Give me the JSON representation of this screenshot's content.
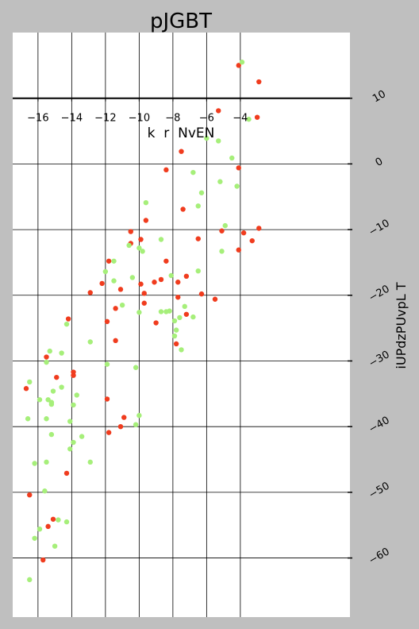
{
  "chart_data": {
    "type": "scatter",
    "title": "pJGBT",
    "xlabel": "k  r  NvEN",
    "ylabel": "iUPdzPUvpL T",
    "xlim": [
      -17.5,
      2.5
    ],
    "ylim": [
      -69,
      20
    ],
    "x_ticks": [
      -16,
      -14,
      -12,
      -10,
      -8,
      -6,
      -4
    ],
    "x_tick_labels": [
      "−16",
      "−14",
      "−12",
      "−10",
      "−8",
      "−6",
      "−4"
    ],
    "y_ticks": [
      10,
      0,
      -10,
      -20,
      -30,
      -40,
      -50,
      -60
    ],
    "y_tick_labels": [
      "10",
      "0",
      "−10",
      "−20",
      "−30",
      "−40",
      "−50",
      "−60"
    ],
    "x_axis_at_y": 10,
    "y_axis_position": "right",
    "grid": true,
    "colors": {
      "background": "#bfbfbf",
      "plot_bg": "#ffffff",
      "series_1": "#f03c1e",
      "series_2": "#a6ef7a"
    },
    "series": [
      {
        "color": "#f03c1e",
        "points": [
          [
            -4.1,
            15.0
          ],
          [
            -2.9,
            12.5
          ],
          [
            -5.3,
            8.1
          ],
          [
            -3.0,
            7.1
          ],
          [
            -7.5,
            1.9
          ],
          [
            -8.4,
            -0.9
          ],
          [
            -4.1,
            -0.6
          ],
          [
            -7.4,
            -6.9
          ],
          [
            -9.6,
            -8.6
          ],
          [
            -6.5,
            -11.4
          ],
          [
            -10.5,
            -10.3
          ],
          [
            -9.9,
            -11.5
          ],
          [
            -5.1,
            -10.2
          ],
          [
            -3.8,
            -10.5
          ],
          [
            -2.9,
            -9.8
          ],
          [
            -3.3,
            -11.7
          ],
          [
            -10.5,
            -12.1
          ],
          [
            -4.1,
            -13.1
          ],
          [
            -11.8,
            -14.8
          ],
          [
            -8.4,
            -14.8
          ],
          [
            -9.9,
            -18.3
          ],
          [
            -8.7,
            -17.6
          ],
          [
            -7.7,
            -18.0
          ],
          [
            -7.2,
            -17.1
          ],
          [
            -9.1,
            -18.0
          ],
          [
            -12.2,
            -18.2
          ],
          [
            -11.1,
            -19.1
          ],
          [
            -12.9,
            -19.6
          ],
          [
            -9.7,
            -19.7
          ],
          [
            -6.3,
            -19.8
          ],
          [
            -7.7,
            -20.3
          ],
          [
            -5.5,
            -20.6
          ],
          [
            -9.7,
            -21.2
          ],
          [
            -11.4,
            -22.0
          ],
          [
            -7.2,
            -22.9
          ],
          [
            -9.0,
            -24.2
          ],
          [
            -11.9,
            -24.0
          ],
          [
            -14.2,
            -23.6
          ],
          [
            -11.4,
            -26.9
          ],
          [
            -7.8,
            -27.4
          ],
          [
            -15.5,
            -29.4
          ],
          [
            -13.9,
            -31.7
          ],
          [
            -13.9,
            -32.2
          ],
          [
            -14.9,
            -32.5
          ],
          [
            -16.7,
            -34.2
          ],
          [
            -11.9,
            -35.8
          ],
          [
            -10.9,
            -38.6
          ],
          [
            -11.1,
            -40.0
          ],
          [
            -11.8,
            -40.9
          ],
          [
            -14.3,
            -47.1
          ],
          [
            -16.5,
            -50.4
          ],
          [
            -15.1,
            -54.1
          ],
          [
            -15.4,
            -55.2
          ],
          [
            -15.7,
            -60.3
          ]
        ]
      },
      {
        "color": "#a6ef7a",
        "points": [
          [
            -3.9,
            15.5
          ],
          [
            -3.5,
            6.8
          ],
          [
            -6.0,
            3.9
          ],
          [
            -5.3,
            3.5
          ],
          [
            -4.5,
            0.9
          ],
          [
            -6.8,
            -1.3
          ],
          [
            -5.2,
            -2.7
          ],
          [
            -4.2,
            -3.4
          ],
          [
            -6.3,
            -4.4
          ],
          [
            -9.6,
            -5.9
          ],
          [
            -6.5,
            -6.4
          ],
          [
            -4.9,
            -9.4
          ],
          [
            -8.7,
            -11.5
          ],
          [
            -10.6,
            -12.4
          ],
          [
            -10.0,
            -12.8
          ],
          [
            -9.8,
            -13.3
          ],
          [
            -5.1,
            -13.3
          ],
          [
            -11.5,
            -14.8
          ],
          [
            -12.0,
            -16.4
          ],
          [
            -6.5,
            -16.3
          ],
          [
            -11.5,
            -17.8
          ],
          [
            -10.4,
            -17.3
          ],
          [
            -8.1,
            -17.0
          ],
          [
            -7.3,
            -21.7
          ],
          [
            -11.0,
            -21.5
          ],
          [
            -10.0,
            -22.6
          ],
          [
            -8.7,
            -22.5
          ],
          [
            -8.4,
            -22.5
          ],
          [
            -8.2,
            -22.4
          ],
          [
            -7.6,
            -23.4
          ],
          [
            -6.8,
            -23.3
          ],
          [
            -7.9,
            -23.9
          ],
          [
            -14.3,
            -24.4
          ],
          [
            -7.8,
            -25.3
          ],
          [
            -7.9,
            -26.2
          ],
          [
            -12.9,
            -27.1
          ],
          [
            -7.5,
            -28.3
          ],
          [
            -15.3,
            -28.5
          ],
          [
            -14.6,
            -28.8
          ],
          [
            -15.5,
            -30.2
          ],
          [
            -11.9,
            -30.5
          ],
          [
            -10.2,
            -31.0
          ],
          [
            -16.5,
            -33.2
          ],
          [
            -14.6,
            -34.0
          ],
          [
            -15.1,
            -34.6
          ],
          [
            -13.7,
            -35.2
          ],
          [
            -15.9,
            -35.9
          ],
          [
            -15.4,
            -35.9
          ],
          [
            -15.2,
            -36.3
          ],
          [
            -15.2,
            -36.6
          ],
          [
            -13.9,
            -36.7
          ],
          [
            -16.6,
            -38.8
          ],
          [
            -15.5,
            -38.8
          ],
          [
            -10.0,
            -38.3
          ],
          [
            -14.1,
            -39.2
          ],
          [
            -10.2,
            -39.7
          ],
          [
            -15.2,
            -41.2
          ],
          [
            -13.4,
            -41.5
          ],
          [
            -13.9,
            -42.4
          ],
          [
            -14.1,
            -43.4
          ],
          [
            -15.5,
            -45.4
          ],
          [
            -16.2,
            -45.6
          ],
          [
            -12.9,
            -45.4
          ],
          [
            -15.6,
            -49.8
          ],
          [
            -14.8,
            -54.2
          ],
          [
            -14.3,
            -54.5
          ],
          [
            -15.9,
            -55.6
          ],
          [
            -16.2,
            -57.0
          ],
          [
            -15.0,
            -58.2
          ],
          [
            -16.5,
            -63.3
          ]
        ]
      }
    ]
  }
}
